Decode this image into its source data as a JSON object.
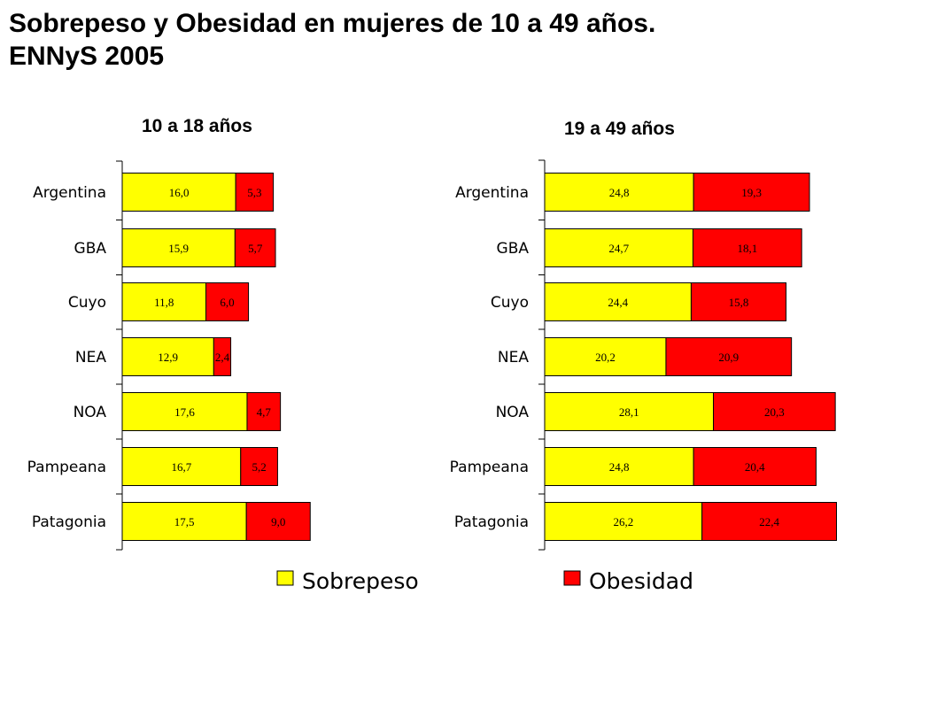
{
  "title_lines": [
    "Sobrepeso y Obesidad en mujeres de 10 a 49 años.",
    "ENNyS 2005"
  ],
  "colors": {
    "sobrepeso": "#ffff00",
    "obesidad": "#ff0000",
    "outline": "#000000"
  },
  "legend": [
    {
      "key": "sobrepeso",
      "label": "Sobrepeso"
    },
    {
      "key": "obesidad",
      "label": "Obesidad"
    }
  ],
  "chart_data": [
    {
      "type": "bar",
      "orientation": "horizontal",
      "stacked": true,
      "title": "10 a 18 años",
      "categories": [
        "Argentina",
        "GBA",
        "Cuyo",
        "NEA",
        "NOA",
        "Pampeana",
        "Patagonia"
      ],
      "series": [
        {
          "name": "Sobrepeso",
          "values": [
            16.0,
            15.9,
            11.8,
            12.9,
            17.6,
            16.7,
            17.5
          ],
          "labels": [
            "16,0",
            "15,9",
            "11,8",
            "12,9",
            "17,6",
            "16,7",
            "17,5"
          ]
        },
        {
          "name": "Obesidad",
          "values": [
            5.3,
            5.7,
            6.0,
            2.4,
            4.7,
            5.2,
            9.0
          ],
          "labels": [
            "5,3",
            "5,7",
            "6,0",
            "2,4",
            "4,7",
            "5,2",
            "9,0"
          ]
        }
      ],
      "xlim": [
        0,
        60
      ],
      "legend_position": "bottom"
    },
    {
      "type": "bar",
      "orientation": "horizontal",
      "stacked": true,
      "title": "19 a 49 años",
      "categories": [
        "Argentina",
        "GBA",
        "Cuyo",
        "NEA",
        "NOA",
        "Pampeana",
        "Patagonia"
      ],
      "series": [
        {
          "name": "Sobrepeso",
          "values": [
            24.8,
            24.7,
            24.4,
            20.2,
            28.1,
            24.8,
            26.2
          ],
          "labels": [
            "24,8",
            "24,7",
            "24,4",
            "20,2",
            "28,1",
            "24,8",
            "26,2"
          ]
        },
        {
          "name": "Obesidad",
          "values": [
            19.3,
            18.1,
            15.8,
            20.9,
            20.3,
            20.4,
            22.4
          ],
          "labels": [
            "19,3",
            "18,1",
            "15,8",
            "20,9",
            "20,3",
            "20,4",
            "22,4"
          ]
        }
      ],
      "xlim": [
        0,
        60
      ],
      "legend_position": "bottom"
    }
  ]
}
